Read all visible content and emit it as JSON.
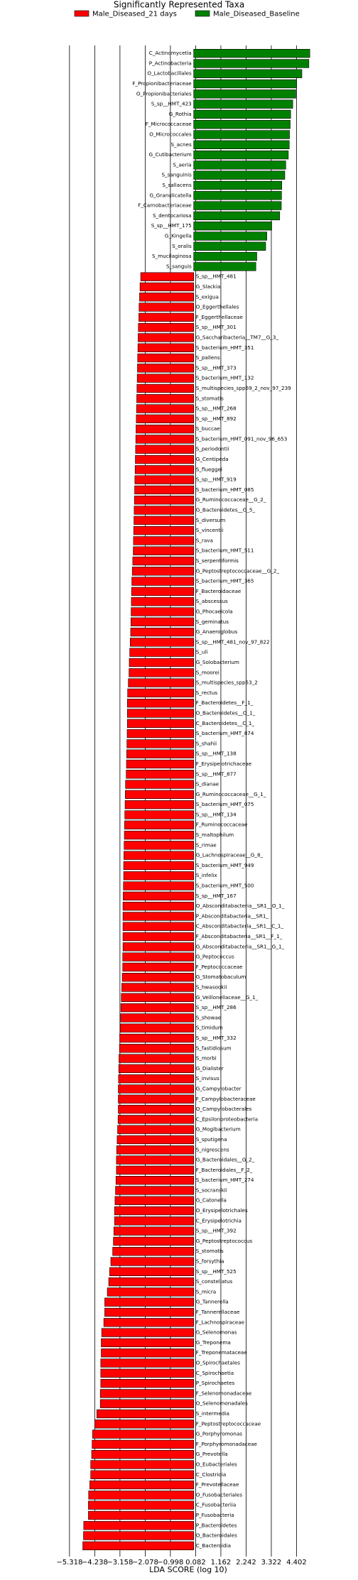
{
  "chart_data": {
    "type": "bar",
    "orientation": "horizontal",
    "title": "Significantly Represented Taxa",
    "xlabel": "LDA SCORE (log 10)",
    "legend": "upper center",
    "grid": true,
    "xlim": [
      -5.8,
      5.3
    ],
    "xticks": [
      {
        "value": -5.318,
        "label": "−5.318"
      },
      {
        "value": -4.238,
        "label": "−4.238"
      },
      {
        "value": -3.158,
        "label": "−3.158"
      },
      {
        "value": -2.078,
        "label": "−2.078"
      },
      {
        "value": -0.998,
        "label": "−0.998"
      },
      0.082,
      1.162,
      2.242,
      3.322,
      4.402
    ],
    "series": [
      {
        "name": "Male_Diseased_21 days",
        "color": "#ff0000",
        "categories": [
          "S_sp__HMT_481",
          "G_Slackia",
          "S_exigua",
          "O_Eggerthellales",
          "F_Eggerthellaceae",
          "S_sp__HMT_301",
          "G_Saccharibacteria__TM7__G_3_",
          "S_bacterium_HMT_351",
          "S_pallens",
          "S_sp__HMT_373",
          "S_bacterium_HMT_132",
          "S_multispecies_spp69_2_nov_97_239",
          "S_stomatis",
          "S_sp__HMT_268",
          "S_sp__HMT_892",
          "S_buccae",
          "S_bacterium_HMT_091_nov_96_653",
          "S_periodontii",
          "G_Centipeda",
          "S_flueggei",
          "S_sp__HMT_919",
          "S_bacterium_HMT_085",
          "G_Ruminococcaceae__G_2_",
          "G_Bacteroidetes__G_5_",
          "S_diversum",
          "S_vincentii",
          "S_rava",
          "S_bacterium_HMT_511",
          "S_serpentiformis",
          "G_Peptostreptococcaceae__G_2_",
          "S_bacterium_HMT_365",
          "F_Bacteroidaceae",
          "S_abscessus",
          "G_Phocaeicola",
          "S_geminatus",
          "G_Anaeroglobus",
          "S_sp__HMT_481_nov_97_822",
          "S_uli",
          "G_Solobacterium",
          "S_moorei",
          "S_multispecies_spp53_2",
          "S_rectus",
          "F_Bacteroidetes__F_1_",
          "O_Bacteroidetes__O_1_",
          "C_Bacteroidetes__C_1_",
          "S_bacterium_HMT_874",
          "S_shahii",
          "S_sp__HMT_138",
          "F_Erysipelotrichaceae",
          "S_sp__HMT_877",
          "S_dianae",
          "G_Ruminococcaceae__G_1_",
          "S_bacterium_HMT_075",
          "S_sp__HMT_134",
          "F_Ruminococcaceae",
          "S_maltophilum",
          "S_rimae",
          "G_Lachnospiraceae__G_8_",
          "S_bacterium_HMT_949",
          "S_infelix",
          "S_bacterium_HMT_500",
          "S_sp__HMT_167",
          "O_Absconditabacteria__SR1__O_1_",
          "P_Absconditabacteria__SR1_",
          "C_Absconditabacteria__SR1__C_1_",
          "F_Absconditabacteria__SR1__F_1_",
          "G_Absconditabacteria__SR1__G_1_",
          "G_Peptococcus",
          "F_Peptococcaceae",
          "G_Stomatobaculum",
          "S_hwasookii",
          "G_Veillonellaceae__G_1_",
          "S_sp__HMT_286",
          "S_showae",
          "S_timidum",
          "S_sp__HMT_332",
          "S_fastidiosum",
          "S_morbi",
          "G_Dialister",
          "S_invisus",
          "G_Campylobacter",
          "F_Campylobacteraceae",
          "O_Campylobacterales",
          "C_Epsilonproteobacteria",
          "G_Mogibacterium",
          "S_sputigena",
          "S_nigrescens",
          "G_Bacteroidales__G_2_",
          "F_Bacteroidales__F_2_",
          "S_bacterium_HMT_274",
          "S_socranskii",
          "G_Catonella",
          "O_Erysipelotrichales",
          "C_Erysipelotrichia",
          "S_sp__HMT_392",
          "G_Peptostreptococcus",
          "S_stomatis",
          "S_forsythia",
          "S_sp__HMT_525",
          "S_constellatus",
          "S_micra",
          "G_Tannerella",
          "F_Tannerellaceae",
          "F_Lachnospiraceae",
          "G_Selenomonas",
          "G_Treponema",
          "F_Treponemataceae",
          "O_Spirochaetales",
          "C_Spirochaetia",
          "P_Spirochaetes",
          "F_Selenomonadaceae",
          "O_Selenomonadales",
          "S_intermedia",
          "F_Peptostreptococcaceae",
          "G_Porphyromonas",
          "F_Porphyromonadaceae",
          "G_Prevotella",
          "O_Eubacteriales",
          "C_Clostridia",
          "F_Prevotellaceae",
          "O_Fusobacteriales",
          "C_Fusobacteriia",
          "P_Fusobacteria",
          "P_Bacteroidetes",
          "O_Bacteroidales",
          "C_Bacteroidia"
        ],
        "values": [
          -2.27,
          -2.3,
          -2.32,
          -2.34,
          -2.35,
          -2.37,
          -2.38,
          -2.39,
          -2.4,
          -2.41,
          -2.42,
          -2.43,
          -2.44,
          -2.45,
          -2.46,
          -2.47,
          -2.48,
          -2.49,
          -2.5,
          -2.51,
          -2.52,
          -2.53,
          -2.54,
          -2.55,
          -2.56,
          -2.57,
          -2.58,
          -2.59,
          -2.61,
          -2.63,
          -2.65,
          -2.66,
          -2.67,
          -2.68,
          -2.69,
          -2.7,
          -2.72,
          -2.74,
          -2.76,
          -2.77,
          -2.8,
          -2.83,
          -2.84,
          -2.84,
          -2.84,
          -2.85,
          -2.86,
          -2.87,
          -2.88,
          -2.89,
          -2.92,
          -2.93,
          -2.94,
          -2.95,
          -2.96,
          -2.97,
          -2.98,
          -2.99,
          -3.0,
          -3.0,
          -3.01,
          -3.02,
          -3.03,
          -3.03,
          -3.03,
          -3.03,
          -3.03,
          -3.04,
          -3.04,
          -3.06,
          -3.08,
          -3.1,
          -3.12,
          -3.13,
          -3.15,
          -3.17,
          -3.18,
          -3.2,
          -3.21,
          -3.22,
          -3.23,
          -3.23,
          -3.23,
          -3.24,
          -3.26,
          -3.28,
          -3.3,
          -3.31,
          -3.31,
          -3.33,
          -3.35,
          -3.37,
          -3.39,
          -3.39,
          -3.42,
          -3.44,
          -3.47,
          -3.55,
          -3.6,
          -3.64,
          -3.7,
          -3.81,
          -3.81,
          -3.85,
          -3.94,
          -3.96,
          -3.96,
          -3.98,
          -3.98,
          -3.98,
          -4.0,
          -4.0,
          -4.15,
          -4.24,
          -4.33,
          -4.35,
          -4.37,
          -4.41,
          -4.41,
          -4.45,
          -4.5,
          -4.51,
          -4.51,
          -4.71,
          -4.72,
          -4.75
        ]
      },
      {
        "name": "Male_Diseased_Baseline",
        "color": "#008000",
        "categories": [
          "C_Actinomycetia",
          "P_Actinobacteria",
          "O_Lactobacillales",
          "F_Propionibacteriaceae",
          "O_Propionibacteriales",
          "S_sp__HMT_423",
          "G_Rothia",
          "F_Micrococcaceae",
          "O_Micrococcales",
          "S_acnes",
          "G_Cutibacterium",
          "S_aeria",
          "S_sanguinis",
          "S_sallacens",
          "G_Granulicatella",
          "F_Carnobacteriaceae",
          "S_dentocariosa",
          "S_sp__HMT_175",
          "G_Kingella",
          "S_oralis",
          "S_mucilaginosa",
          "S_sanguis"
        ],
        "values": [
          4.97,
          4.93,
          4.63,
          4.41,
          4.37,
          4.24,
          4.15,
          4.13,
          4.1,
          4.09,
          4.05,
          3.94,
          3.9,
          3.77,
          3.76,
          3.75,
          3.68,
          3.34,
          3.13,
          3.08,
          2.7,
          2.66
        ]
      }
    ]
  }
}
